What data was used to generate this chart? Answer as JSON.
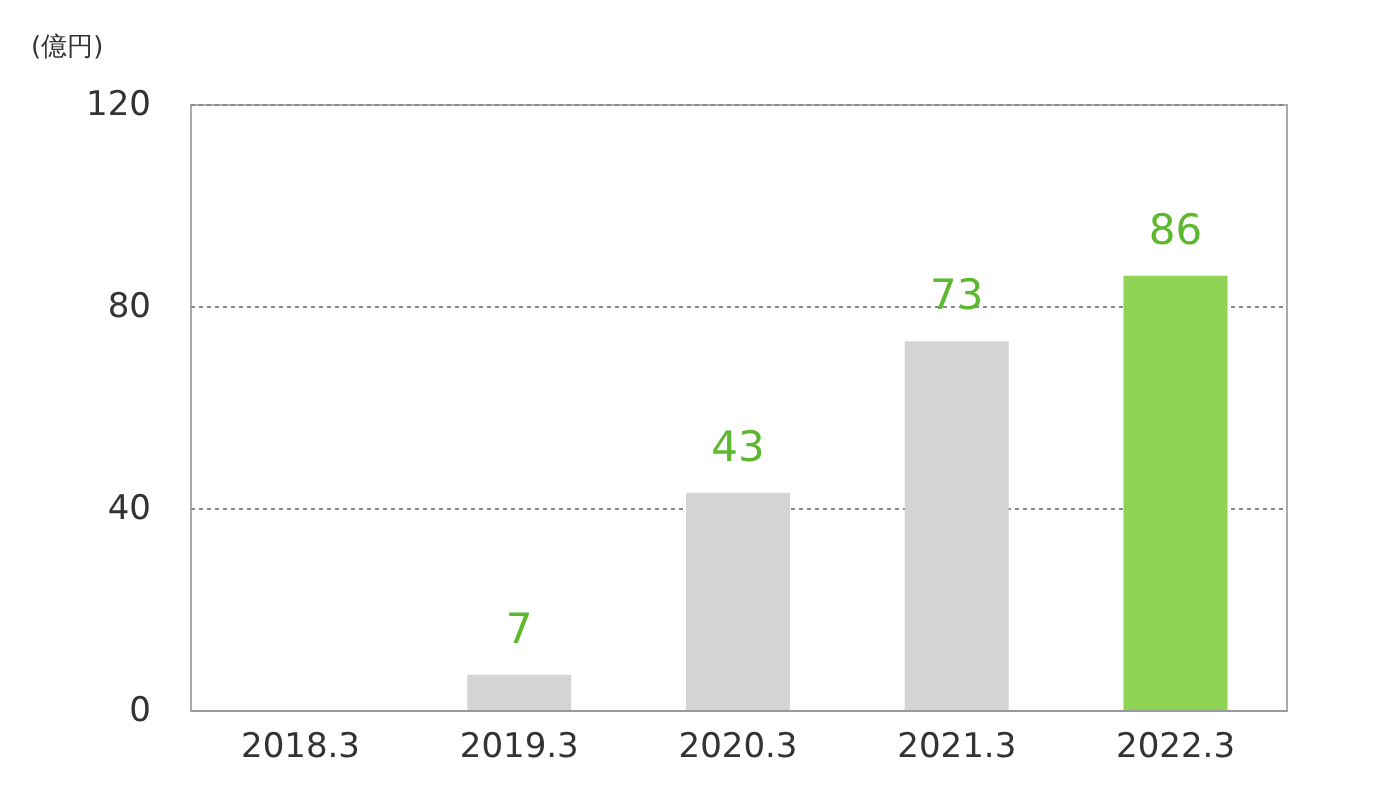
{
  "chart_data": {
    "type": "bar",
    "ylabel": "(億円)",
    "categories": [
      "2018.3",
      "2019.3",
      "2020.3",
      "2021.3",
      "2022.3"
    ],
    "values": [
      null,
      7,
      43,
      73,
      86
    ],
    "colors": [
      "#d4d4d4",
      "#d4d4d4",
      "#d4d4d4",
      "#d4d4d4",
      "#8ed354"
    ],
    "data_labels": true,
    "ylim": [
      0,
      120
    ],
    "yticks": [
      0,
      40,
      80,
      120
    ],
    "grid": "y"
  }
}
